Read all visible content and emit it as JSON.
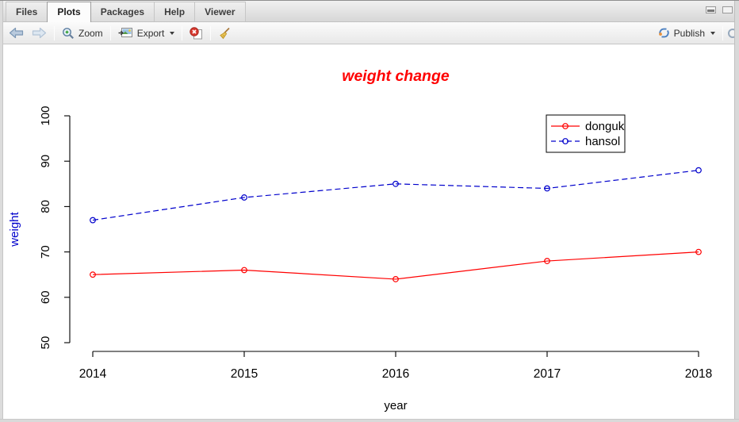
{
  "tabs": [
    {
      "label": "Files",
      "active": false
    },
    {
      "label": "Plots",
      "active": true
    },
    {
      "label": "Packages",
      "active": false
    },
    {
      "label": "Help",
      "active": false
    },
    {
      "label": "Viewer",
      "active": false
    }
  ],
  "toolbar": {
    "zoom_label": "Zoom",
    "export_label": "Export",
    "publish_label": "Publish"
  },
  "icons": {
    "back": "arrow-left",
    "forward": "arrow-right",
    "zoom": "magnifier-plus",
    "export": "image-thumbnail",
    "remove_plot": "page-with-red-x",
    "clear_all": "broom",
    "publish": "sync-arrows",
    "dropdown": "caret-down",
    "minimize_pane": "minimize-bar",
    "maximize_pane": "maximize-box",
    "refresh_partial": "circle-arc"
  },
  "colors": {
    "series_red": "#ff0000",
    "series_blue": "#0000cc",
    "title_red": "#ff0000",
    "ylabel_blue": "#0000cc",
    "chrome_gray": "#e8e8e8"
  },
  "chart_data": {
    "type": "line",
    "title": "weight change",
    "title_color": "#ff0000",
    "xlabel": "year",
    "ylabel": "weight",
    "ylabel_color": "#0000cc",
    "x": [
      2014,
      2015,
      2016,
      2017,
      2018
    ],
    "xticks": [
      "2014",
      "2015",
      "2016",
      "2017",
      "2018"
    ],
    "yticks": [
      50,
      60,
      70,
      80,
      90,
      100
    ],
    "ylim": [
      50,
      100
    ],
    "grid": false,
    "legend_position": "top-right",
    "series": [
      {
        "name": "donguk",
        "values": [
          65,
          66,
          64,
          68,
          70
        ],
        "color": "#ff0000",
        "style": "solid",
        "marker": "open-circle"
      },
      {
        "name": "hansol",
        "values": [
          77,
          82,
          85,
          84,
          88
        ],
        "color": "#0000cc",
        "style": "dashed",
        "marker": "open-circle"
      }
    ]
  }
}
